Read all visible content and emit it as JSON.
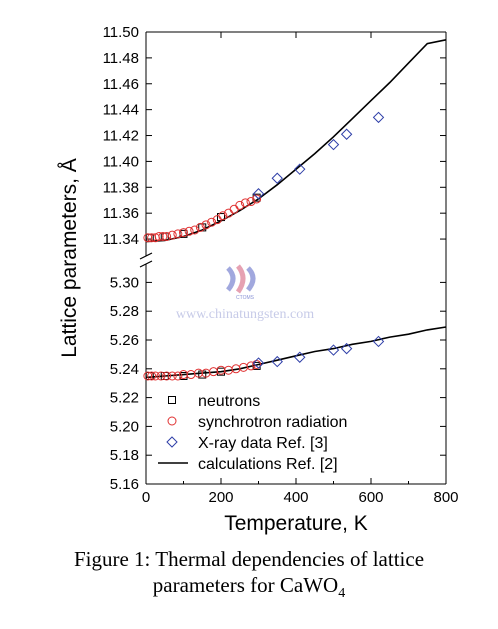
{
  "chart_data": {
    "type": "scatter",
    "xlabel": "Temperature, K",
    "ylabel": "Lattice parameters, Å",
    "x_ticks": [
      0,
      200,
      400,
      600,
      800
    ],
    "xlim": [
      0,
      800
    ],
    "y_axis_break": true,
    "upper_panel": {
      "ylim": [
        11.33,
        11.5
      ],
      "y_ticks": [
        "11.34",
        "11.36",
        "11.38",
        "11.40",
        "11.42",
        "11.44",
        "11.46",
        "11.48",
        "11.50"
      ]
    },
    "lower_panel": {
      "ylim": [
        5.16,
        5.31
      ],
      "y_ticks": [
        "5.16",
        "5.18",
        "5.20",
        "5.22",
        "5.24",
        "5.26",
        "5.28",
        "5.30"
      ]
    },
    "legend_position": "bottom-right",
    "grid": false,
    "series": [
      {
        "name": "neutrons",
        "marker": "square",
        "color": "#000000",
        "upper": [
          [
            10,
            11.341
          ],
          [
            50,
            11.342
          ],
          [
            100,
            11.344
          ],
          [
            150,
            11.349
          ],
          [
            200,
            11.357
          ],
          [
            295,
            11.372
          ]
        ],
        "lower": [
          [
            10,
            5.235
          ],
          [
            50,
            5.235
          ],
          [
            100,
            5.235
          ],
          [
            150,
            5.236
          ],
          [
            200,
            5.238
          ],
          [
            295,
            5.242
          ]
        ]
      },
      {
        "name": "synchrotron radiation",
        "marker": "circle",
        "color": "#e03030",
        "upper": [
          [
            5,
            11.341
          ],
          [
            15,
            11.341
          ],
          [
            25,
            11.341
          ],
          [
            35,
            11.342
          ],
          [
            45,
            11.342
          ],
          [
            55,
            11.342
          ],
          [
            70,
            11.343
          ],
          [
            85,
            11.344
          ],
          [
            100,
            11.345
          ],
          [
            115,
            11.346
          ],
          [
            130,
            11.347
          ],
          [
            145,
            11.349
          ],
          [
            160,
            11.351
          ],
          [
            175,
            11.353
          ],
          [
            190,
            11.355
          ],
          [
            205,
            11.358
          ],
          [
            220,
            11.36
          ],
          [
            235,
            11.363
          ],
          [
            250,
            11.366
          ],
          [
            265,
            11.368
          ],
          [
            280,
            11.369
          ],
          [
            295,
            11.371
          ]
        ],
        "lower": [
          [
            5,
            5.235
          ],
          [
            15,
            5.235
          ],
          [
            25,
            5.235
          ],
          [
            40,
            5.235
          ],
          [
            55,
            5.235
          ],
          [
            70,
            5.235
          ],
          [
            85,
            5.235
          ],
          [
            100,
            5.236
          ],
          [
            120,
            5.236
          ],
          [
            140,
            5.237
          ],
          [
            160,
            5.237
          ],
          [
            180,
            5.238
          ],
          [
            200,
            5.239
          ],
          [
            220,
            5.239
          ],
          [
            240,
            5.24
          ],
          [
            260,
            5.241
          ],
          [
            280,
            5.242
          ],
          [
            295,
            5.243
          ]
        ]
      },
      {
        "name": "X-ray data Ref. [3]",
        "marker": "diamond",
        "color": "#2f3fa8",
        "upper": [
          [
            300,
            11.375
          ],
          [
            350,
            11.387
          ],
          [
            410,
            11.394
          ],
          [
            500,
            11.413
          ],
          [
            535,
            11.421
          ],
          [
            620,
            11.434
          ]
        ],
        "lower": [
          [
            300,
            5.244
          ],
          [
            350,
            5.245
          ],
          [
            410,
            5.248
          ],
          [
            500,
            5.253
          ],
          [
            535,
            5.254
          ],
          [
            620,
            5.259
          ]
        ]
      },
      {
        "name": "calculations Ref. [2]",
        "marker": "line",
        "color": "#000000",
        "upper": [
          [
            0,
            11.338
          ],
          [
            50,
            11.339
          ],
          [
            100,
            11.342
          ],
          [
            150,
            11.347
          ],
          [
            200,
            11.354
          ],
          [
            250,
            11.362
          ],
          [
            300,
            11.371
          ],
          [
            350,
            11.382
          ],
          [
            400,
            11.394
          ],
          [
            450,
            11.406
          ],
          [
            500,
            11.419
          ],
          [
            550,
            11.433
          ],
          [
            600,
            11.447
          ],
          [
            650,
            11.461
          ],
          [
            700,
            11.476
          ],
          [
            750,
            11.491
          ],
          [
            800,
            11.494
          ]
        ],
        "lower": [
          [
            0,
            5.234
          ],
          [
            50,
            5.235
          ],
          [
            100,
            5.236
          ],
          [
            150,
            5.237
          ],
          [
            200,
            5.238
          ],
          [
            250,
            5.24
          ],
          [
            300,
            5.243
          ],
          [
            350,
            5.246
          ],
          [
            400,
            5.249
          ],
          [
            450,
            5.252
          ],
          [
            500,
            5.254
          ],
          [
            550,
            5.257
          ],
          [
            600,
            5.259
          ],
          [
            650,
            5.262
          ],
          [
            700,
            5.264
          ],
          [
            750,
            5.267
          ],
          [
            800,
            5.269
          ]
        ]
      }
    ]
  },
  "watermark": {
    "text": "www.chinatungsten.com",
    "logo_text": "CTOMS",
    "color": "#c7cbe8"
  },
  "caption": {
    "line1": "Figure 1: Thermal dependencies of lattice",
    "line2_prefix": "parameters for CaWO",
    "line2_sub": "4"
  }
}
